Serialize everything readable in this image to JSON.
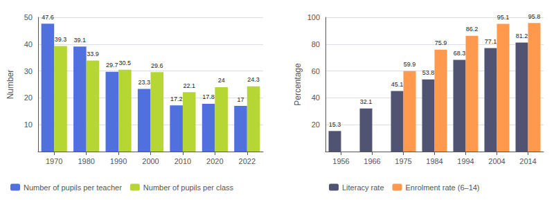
{
  "chart_data": [
    {
      "type": "bar",
      "ylabel": "Number",
      "categories": [
        "1970",
        "1980",
        "1990",
        "2000",
        "2010",
        "2020",
        "2022"
      ],
      "series": [
        {
          "name": "Number of pupils per teacher",
          "values": [
            47.6,
            39.1,
            29.7,
            23.3,
            17.2,
            17.8,
            17.0
          ]
        },
        {
          "name": "Number of pupils per class",
          "values": [
            39.3,
            33.9,
            30.5,
            29.6,
            22.1,
            24.0,
            24.3
          ]
        }
      ],
      "ylim": [
        0,
        50
      ],
      "yticks": [
        10,
        20,
        30,
        40,
        50
      ],
      "grid": true,
      "legend": "bottom",
      "data_labels": true
    },
    {
      "type": "bar",
      "ylabel": "Percentage",
      "categories": [
        "1956",
        "1966",
        "1975",
        "1984",
        "1994",
        "2004",
        "2014"
      ],
      "series": [
        {
          "name": "Literacy rate",
          "values": [
            15.3,
            32.1,
            45.1,
            53.8,
            68.3,
            77.1,
            81.2
          ]
        },
        {
          "name": "Enrolment rate (6–14)",
          "values": [
            null,
            null,
            59.9,
            75.9,
            86.2,
            95.1,
            95.8
          ]
        }
      ],
      "ylim": [
        0,
        100
      ],
      "yticks": [
        20,
        40,
        60,
        80,
        100
      ],
      "grid": true,
      "legend": "bottom",
      "data_labels": true
    }
  ]
}
